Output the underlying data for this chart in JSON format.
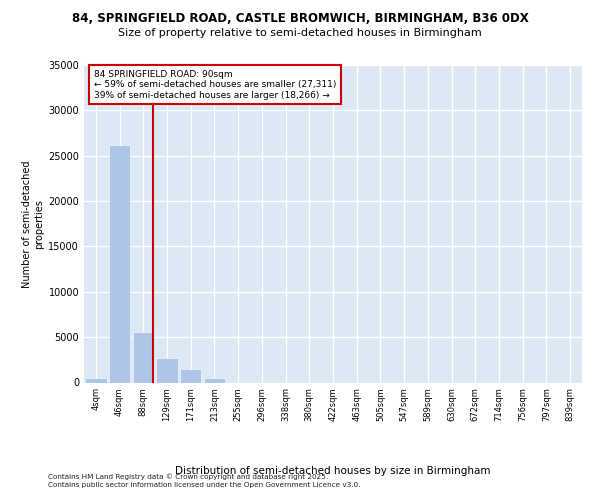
{
  "title_line1": "84, SPRINGFIELD ROAD, CASTLE BROMWICH, BIRMINGHAM, B36 0DX",
  "title_line2": "Size of property relative to semi-detached houses in Birmingham",
  "xlabel": "Distribution of semi-detached houses by size in Birmingham",
  "ylabel": "Number of semi-detached\nproperties",
  "footer_line1": "Contains HM Land Registry data © Crown copyright and database right 2025.",
  "footer_line2": "Contains public sector information licensed under the Open Government Licence v3.0.",
  "annotation_line1": "84 SPRINGFIELD ROAD: 90sqm",
  "annotation_line2": "← 59% of semi-detached houses are smaller (27,311)",
  "annotation_line3": "39% of semi-detached houses are larger (18,266) →",
  "bin_labels": [
    "4sqm",
    "46sqm",
    "88sqm",
    "129sqm",
    "171sqm",
    "213sqm",
    "255sqm",
    "296sqm",
    "338sqm",
    "380sqm",
    "422sqm",
    "463sqm",
    "505sqm",
    "547sqm",
    "589sqm",
    "630sqm",
    "672sqm",
    "714sqm",
    "756sqm",
    "797sqm",
    "839sqm"
  ],
  "bar_values": [
    500,
    26200,
    5600,
    2750,
    1450,
    550,
    0,
    0,
    0,
    0,
    0,
    0,
    0,
    0,
    0,
    0,
    0,
    0,
    0,
    0,
    0
  ],
  "bar_color": "#adc6e8",
  "vline_color": "#cc0000",
  "background_color": "#dde8f5",
  "ylim": [
    0,
    35000
  ],
  "yticks": [
    0,
    5000,
    10000,
    15000,
    20000,
    25000,
    30000,
    35000
  ],
  "vline_pos": 2.42
}
